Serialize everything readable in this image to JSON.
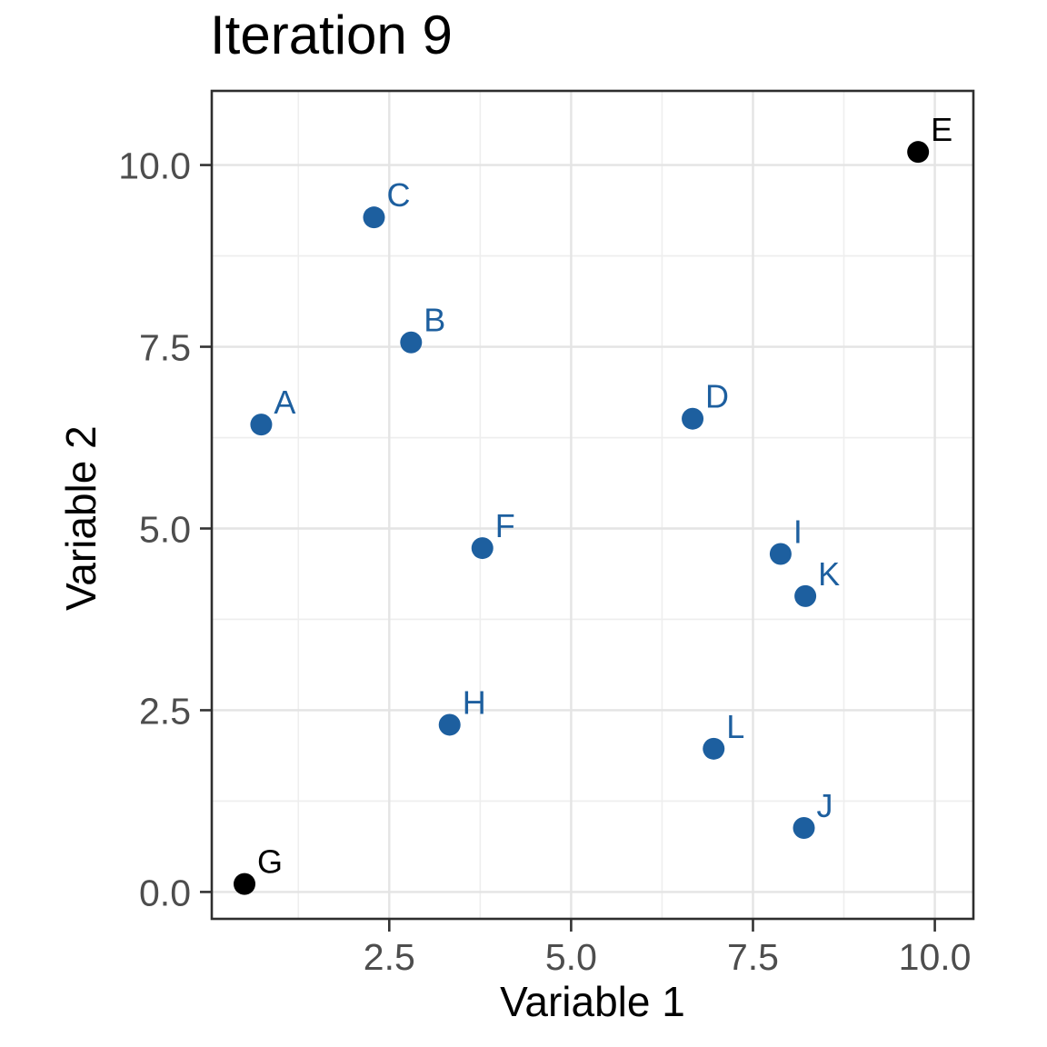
{
  "title": "Iteration 9",
  "colors": {
    "point_blue": "#1d5f9f",
    "point_black": "#000000",
    "grid_major": "#e4e4e4",
    "grid_minor": "#eeeeee",
    "panel_border": "#2e2e2e",
    "axis_tick": "#333333",
    "tick_label": "#4d4d4d",
    "title_text": "#000000"
  },
  "chart_data": {
    "type": "scatter",
    "title": "Iteration 9",
    "xlabel": "Variable 1",
    "ylabel": "Variable 2",
    "xlim": [
      0.06,
      10.53
    ],
    "ylim": [
      -0.37,
      11.02
    ],
    "grid": "major+minor",
    "legend": false,
    "x_ticks": {
      "values": [
        2.5,
        5.0,
        7.5,
        10.0
      ],
      "labels": [
        "2.5",
        "5.0",
        "7.5",
        "10.0"
      ]
    },
    "y_ticks": {
      "values": [
        0.0,
        2.5,
        5.0,
        7.5,
        10.0
      ],
      "labels": [
        "0.0",
        "2.5",
        "5.0",
        "7.5",
        "10.0"
      ]
    },
    "x_minor": [
      1.25,
      3.75,
      6.25,
      8.75
    ],
    "y_minor": [
      1.25,
      3.75,
      6.25,
      8.75
    ],
    "points": [
      {
        "label": "A",
        "x": 0.74,
        "y": 6.43,
        "color": "blue"
      },
      {
        "label": "B",
        "x": 2.8,
        "y": 7.56,
        "color": "blue"
      },
      {
        "label": "C",
        "x": 2.29,
        "y": 9.28,
        "color": "blue"
      },
      {
        "label": "D",
        "x": 6.67,
        "y": 6.51,
        "color": "blue"
      },
      {
        "label": "E",
        "x": 9.77,
        "y": 10.18,
        "color": "black"
      },
      {
        "label": "F",
        "x": 3.78,
        "y": 4.73,
        "color": "blue"
      },
      {
        "label": "G",
        "x": 0.51,
        "y": 0.11,
        "color": "black"
      },
      {
        "label": "H",
        "x": 3.33,
        "y": 2.3,
        "color": "blue"
      },
      {
        "label": "I",
        "x": 7.88,
        "y": 4.65,
        "color": "blue"
      },
      {
        "label": "J",
        "x": 8.2,
        "y": 0.88,
        "color": "blue"
      },
      {
        "label": "K",
        "x": 8.22,
        "y": 4.07,
        "color": "blue"
      },
      {
        "label": "L",
        "x": 6.96,
        "y": 1.97,
        "color": "blue"
      }
    ]
  }
}
